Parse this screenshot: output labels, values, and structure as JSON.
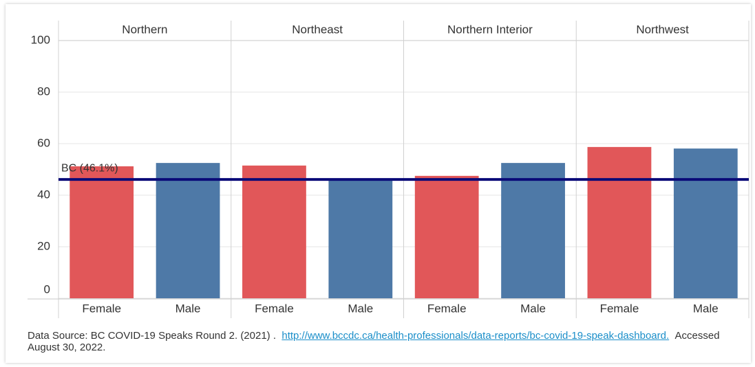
{
  "chart_data": {
    "type": "bar",
    "facets": [
      "Northern",
      "Northeast",
      "Northern Interior",
      "Northwest"
    ],
    "series": [
      {
        "name": "Female",
        "color": "#e15759",
        "values": [
          51.2,
          51.5,
          47.5,
          58.7
        ]
      },
      {
        "name": "Male",
        "color": "#4e79a7",
        "values": [
          52.5,
          46,
          52.5,
          58.1
        ]
      }
    ],
    "reference_line": {
      "label": "BC (46.1%)",
      "value": 46.1,
      "color": "#0a0a78"
    },
    "ylim": [
      0,
      100
    ],
    "yticks": [
      0,
      20,
      40,
      60,
      80,
      100
    ],
    "grid": true
  },
  "source": {
    "text": "Data Source: BC COVID-19 Speaks Round 2. (2021) .",
    "link": "http://www.bccdc.ca/health-professionals/data-reports/bc-covid-19-speak-dashboard.",
    "accessed": "Accessed August 30, 2022."
  }
}
